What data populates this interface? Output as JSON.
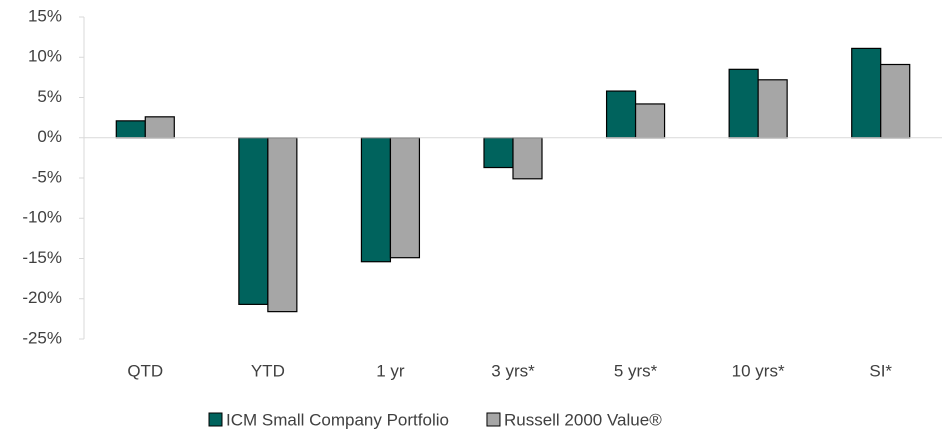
{
  "chart_data": {
    "type": "bar",
    "categories": [
      "QTD",
      "YTD",
      "1 yr",
      "3 yrs*",
      "5 yrs*",
      "10 yrs*",
      "SI*"
    ],
    "series": [
      {
        "name": "ICM Small Company Portfolio",
        "color": "#00635d",
        "values": [
          2.1,
          -20.7,
          -15.4,
          -3.7,
          5.8,
          8.5,
          11.1
        ]
      },
      {
        "name": "Russell 2000 Value®",
        "color": "#a6a6a6",
        "values": [
          2.6,
          -21.6,
          -14.9,
          -5.1,
          4.2,
          7.2,
          9.1
        ]
      }
    ],
    "ylim": [
      -25,
      15
    ],
    "yticks": [
      {
        "value": -25,
        "label": "-25%"
      },
      {
        "value": -20,
        "label": "-20%"
      },
      {
        "value": -15,
        "label": "-15%"
      },
      {
        "value": -10,
        "label": "-10%"
      },
      {
        "value": -5,
        "label": "-5%"
      },
      {
        "value": 0,
        "label": "0%"
      },
      {
        "value": 5,
        "label": "5%"
      },
      {
        "value": 10,
        "label": "10%"
      },
      {
        "value": 15,
        "label": "15%"
      }
    ],
    "grid": false,
    "legend": "bottom"
  }
}
